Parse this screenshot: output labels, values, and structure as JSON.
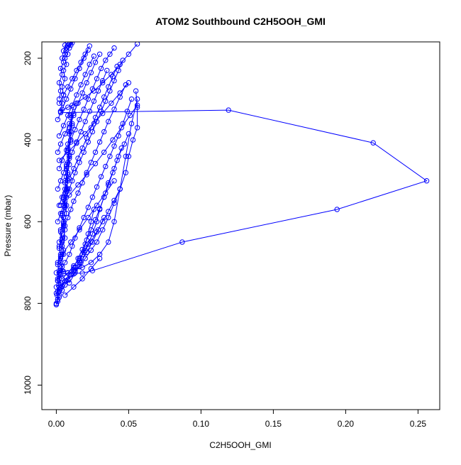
{
  "chart_data": {
    "type": "line",
    "title": "ATOM2 Southbound C2H5OOH_GMI",
    "xlabel": "C2H5OOH_GMI",
    "ylabel": "Pressure (mbar)",
    "xlim": [
      -0.01,
      0.265
    ],
    "ylim": [
      1060,
      160
    ],
    "y_reversed": true,
    "x_ticks": [
      {
        "value": 0.0,
        "label": "0.00"
      },
      {
        "value": 0.05,
        "label": "0.05"
      },
      {
        "value": 0.1,
        "label": "0.10"
      },
      {
        "value": 0.15,
        "label": "0.15"
      },
      {
        "value": 0.2,
        "label": "0.20"
      },
      {
        "value": 0.25,
        "label": "0.25"
      }
    ],
    "y_ticks": [
      {
        "value": 200,
        "label": "200"
      },
      {
        "value": 400,
        "label": "400"
      },
      {
        "value": 600,
        "label": "600"
      },
      {
        "value": 800,
        "label": "800"
      },
      {
        "value": 1000,
        "label": "1000"
      }
    ],
    "grid": false,
    "marker": "open-circle",
    "color": "#0000ff",
    "series": [
      {
        "x": [
          0.0,
          0.001,
          0.0005,
          0.002,
          0.003,
          0.002,
          0.004,
          0.003,
          0.005,
          0.004,
          0.006,
          0.005,
          0.007,
          0.006,
          0.008,
          0.007,
          0.009,
          0.008,
          0.01
        ],
        "y": [
          803,
          795,
          780,
          765,
          750,
          730,
          710,
          690,
          670,
          650,
          620,
          590,
          560,
          530,
          500,
          470,
          440,
          410,
          380
        ]
      },
      {
        "x": [
          0.0,
          0.002,
          0.001,
          0.003,
          0.002,
          0.004,
          0.003,
          0.005,
          0.004,
          0.006,
          0.005,
          0.007,
          0.006,
          0.008,
          0.007,
          0.009,
          0.008,
          0.01,
          0.009,
          0.012
        ],
        "y": [
          800,
          785,
          770,
          755,
          740,
          720,
          700,
          680,
          660,
          640,
          610,
          580,
          550,
          520,
          490,
          460,
          430,
          400,
          370,
          340
        ]
      },
      {
        "x": [
          0.001,
          0.002,
          0.004,
          0.006,
          0.008,
          0.012,
          0.016,
          0.02,
          0.024,
          0.028,
          0.032,
          0.036,
          0.04,
          0.044,
          0.048,
          0.05,
          0.053,
          0.056,
          0.056,
          0.055
        ],
        "y": [
          790,
          780,
          768,
          755,
          742,
          728,
          710,
          690,
          670,
          650,
          620,
          590,
          555,
          520,
          480,
          440,
          400,
          370,
          320,
          280
        ]
      },
      {
        "x": [
          0.002,
          0.004,
          0.007,
          0.01,
          0.013,
          0.016,
          0.019,
          0.022,
          0.025,
          0.028,
          0.03,
          0.033,
          0.036,
          0.04,
          0.043,
          0.047,
          0.05
        ],
        "y": [
          770,
          758,
          745,
          730,
          712,
          695,
          675,
          655,
          630,
          600,
          570,
          540,
          505,
          470,
          440,
          410,
          385
        ]
      },
      {
        "x": [
          0.003,
          0.006,
          0.009,
          0.012,
          0.015,
          0.018,
          0.021,
          0.024,
          0.027,
          0.03,
          0.033,
          0.036,
          0.039,
          0.042,
          0.045
        ],
        "y": [
          760,
          745,
          730,
          712,
          690,
          668,
          645,
          620,
          595,
          568,
          540,
          510,
          480,
          450,
          420
        ]
      },
      {
        "x": [
          0.004,
          0.008,
          0.012,
          0.016,
          0.02,
          0.024,
          0.028,
          0.032,
          0.036,
          0.04,
          0.044
        ],
        "y": [
          740,
          725,
          708,
          690,
          670,
          648,
          625,
          600,
          575,
          548,
          520
        ]
      },
      {
        "x": [
          0.0,
          0.005,
          0.012,
          0.018,
          0.024,
          0.03,
          0.036,
          0.04,
          0.044,
          0.048,
          0.052,
          0.056
        ],
        "y": [
          725,
          722,
          718,
          712,
          700,
          680,
          650,
          600,
          520,
          440,
          360,
          300
        ]
      },
      {
        "x": [
          0.005,
          0.018,
          0.025,
          0.087,
          0.194,
          0.256,
          0.219,
          0.119,
          0.003
        ],
        "y": [
          727,
          726,
          720,
          650,
          570,
          500,
          407,
          327,
          333
        ]
      },
      {
        "x": [
          0.003,
          0.006,
          0.009,
          0.011,
          0.013,
          0.016,
          0.019,
          0.022,
          0.025,
          0.028,
          0.031,
          0.034,
          0.037,
          0.04,
          0.043,
          0.046,
          0.049,
          0.052
        ],
        "y": [
          720,
          700,
          680,
          660,
          640,
          615,
          590,
          565,
          540,
          515,
          490,
          465,
          440,
          415,
          390,
          360,
          330,
          300
        ]
      },
      {
        "x": [
          0.002,
          0.004,
          0.006,
          0.008,
          0.01,
          0.012,
          0.015,
          0.018,
          0.021,
          0.024,
          0.027,
          0.03,
          0.033,
          0.036,
          0.04,
          0.044,
          0.048
        ],
        "y": [
          650,
          630,
          610,
          590,
          570,
          550,
          530,
          505,
          480,
          455,
          430,
          405,
          380,
          355,
          325,
          295,
          265
        ]
      },
      {
        "x": [
          0.001,
          0.003,
          0.005,
          0.007,
          0.009,
          0.011,
          0.013,
          0.016,
          0.019,
          0.022,
          0.025,
          0.028,
          0.031,
          0.034,
          0.037,
          0.04,
          0.043,
          0.046
        ],
        "y": [
          600,
          580,
          560,
          540,
          520,
          500,
          480,
          455,
          430,
          405,
          380,
          355,
          330,
          305,
          280,
          255,
          230,
          205
        ]
      },
      {
        "x": [
          0.002,
          0.004,
          0.006,
          0.009,
          0.012,
          0.015,
          0.018,
          0.021,
          0.024,
          0.027,
          0.03,
          0.033,
          0.036,
          0.039,
          0.042
        ],
        "y": [
          560,
          540,
          520,
          495,
          470,
          445,
          420,
          395,
          370,
          345,
          320,
          295,
          270,
          245,
          220
        ]
      },
      {
        "x": [
          0.001,
          0.003,
          0.005,
          0.008,
          0.011,
          0.014,
          0.017,
          0.02,
          0.023,
          0.026,
          0.029,
          0.032,
          0.035
        ],
        "y": [
          520,
          500,
          480,
          455,
          430,
          405,
          380,
          355,
          330,
          305,
          280,
          255,
          230
        ]
      },
      {
        "x": [
          0.002,
          0.004,
          0.007,
          0.01,
          0.013,
          0.016,
          0.019,
          0.022,
          0.025,
          0.028,
          0.031,
          0.034,
          0.037,
          0.04
        ],
        "y": [
          470,
          450,
          425,
          400,
          375,
          350,
          325,
          300,
          275,
          250,
          225,
          205,
          190,
          175
        ]
      },
      {
        "x": [
          0.001,
          0.003,
          0.006,
          0.009,
          0.012,
          0.015,
          0.018,
          0.021,
          0.024,
          0.027,
          0.03
        ],
        "y": [
          430,
          410,
          385,
          360,
          335,
          310,
          285,
          260,
          235,
          210,
          190
        ]
      },
      {
        "x": [
          0.002,
          0.005,
          0.008,
          0.011,
          0.014,
          0.017,
          0.02,
          0.023,
          0.026
        ],
        "y": [
          390,
          365,
          340,
          315,
          290,
          265,
          240,
          215,
          195
        ]
      },
      {
        "x": [
          0.001,
          0.004,
          0.007,
          0.01,
          0.013,
          0.016,
          0.019,
          0.022
        ],
        "y": [
          350,
          325,
          300,
          275,
          250,
          225,
          200,
          180
        ]
      },
      {
        "x": [
          0.002,
          0.005,
          0.008,
          0.011,
          0.014,
          0.017,
          0.02,
          0.023
        ],
        "y": [
          310,
          290,
          270,
          250,
          230,
          210,
          190,
          170
        ]
      },
      {
        "x": [
          0.003,
          0.008,
          0.014,
          0.02,
          0.026,
          0.032,
          0.038,
          0.044,
          0.05,
          0.056
        ],
        "y": [
          330,
          320,
          310,
          295,
          280,
          260,
          240,
          215,
          190,
          165
        ]
      },
      {
        "x": [
          0.002,
          0.008,
          0.014,
          0.02,
          0.026,
          0.032,
          0.038,
          0.044,
          0.05
        ],
        "y": [
          450,
          430,
          408,
          385,
          360,
          335,
          310,
          285,
          260
        ]
      },
      {
        "x": [
          0.003,
          0.009,
          0.015,
          0.021,
          0.027,
          0.033,
          0.039,
          0.045,
          0.051,
          0.056
        ],
        "y": [
          560,
          535,
          510,
          485,
          458,
          430,
          400,
          370,
          340,
          315
        ]
      },
      {
        "x": [
          0.004,
          0.01,
          0.016,
          0.022,
          0.028,
          0.034,
          0.04
        ],
        "y": [
          680,
          650,
          620,
          590,
          560,
          530,
          500
        ]
      },
      {
        "x": [
          0.001,
          0.002,
          0.001,
          0.003,
          0.002,
          0.004,
          0.003,
          0.005,
          0.004,
          0.006,
          0.005,
          0.007,
          0.006,
          0.008,
          0.007,
          0.009,
          0.008,
          0.01,
          0.009,
          0.011,
          0.01,
          0.012
        ],
        "y": [
          740,
          720,
          700,
          680,
          660,
          640,
          620,
          600,
          580,
          560,
          540,
          520,
          500,
          480,
          460,
          440,
          420,
          400,
          380,
          360,
          340,
          320
        ]
      },
      {
        "x": [
          0.0,
          0.001,
          0.002,
          0.001,
          0.003,
          0.002,
          0.004,
          0.003,
          0.005,
          0.004,
          0.006,
          0.005,
          0.007,
          0.006,
          0.008,
          0.007,
          0.009,
          0.008,
          0.01,
          0.009,
          0.011,
          0.01
        ],
        "y": [
          760,
          745,
          725,
          705,
          685,
          665,
          645,
          625,
          605,
          585,
          565,
          545,
          525,
          505,
          485,
          465,
          445,
          425,
          405,
          385,
          365,
          345
        ]
      },
      {
        "x": [
          0.003,
          0.004,
          0.005,
          0.004,
          0.006,
          0.005,
          0.007,
          0.006,
          0.008,
          0.007,
          0.009,
          0.008,
          0.01,
          0.009,
          0.011,
          0.01
        ],
        "y": [
          330,
          310,
          290,
          270,
          250,
          230,
          215,
          200,
          190,
          180,
          175,
          170,
          168,
          165,
          162,
          160
        ]
      },
      {
        "x": [
          0.002,
          0.003,
          0.002,
          0.004,
          0.003,
          0.005,
          0.004,
          0.006,
          0.005,
          0.007,
          0.006,
          0.008
        ],
        "y": [
          300,
          280,
          260,
          240,
          225,
          210,
          200,
          190,
          182,
          175,
          168,
          162
        ]
      },
      {
        "x": [
          0.013,
          0.016,
          0.018,
          0.02,
          0.022,
          0.024,
          0.026
        ],
        "y": [
          720,
          700,
          680,
          655,
          630,
          600,
          570
        ]
      },
      {
        "x": [
          0.009,
          0.013,
          0.017,
          0.021,
          0.025,
          0.029,
          0.033
        ],
        "y": [
          750,
          725,
          700,
          675,
          650,
          620,
          590
        ]
      },
      {
        "x": [
          0.006,
          0.012,
          0.018,
          0.024,
          0.03
        ],
        "y": [
          780,
          760,
          740,
          715,
          690
        ]
      },
      {
        "x": [
          0.0,
          0.001,
          0.0,
          0.002,
          0.001,
          0.003
        ],
        "y": [
          803,
          790,
          775,
          760,
          745,
          730
        ]
      }
    ]
  }
}
